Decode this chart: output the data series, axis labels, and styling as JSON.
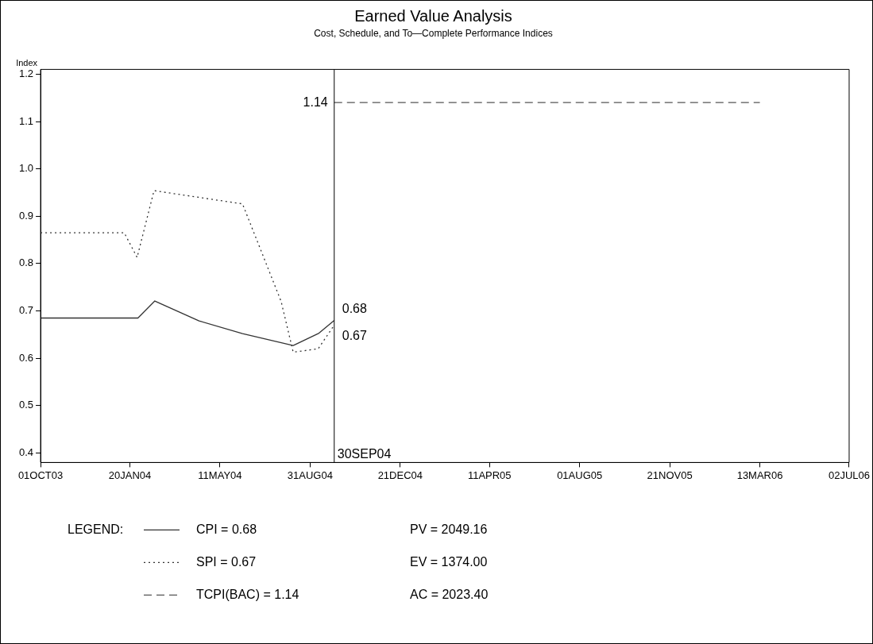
{
  "chart_data": {
    "type": "line",
    "title": "Earned Value Analysis",
    "subtitle": "Cost, Schedule, and To—Complete Performance Indices",
    "ylabel": "Index",
    "legend_title": "LEGEND:",
    "legend": "bottom",
    "grid": false,
    "marker": "none",
    "xlim": [
      "2003-10-01",
      "2006-07-02"
    ],
    "xticks": [
      {
        "value": "2003-10-01",
        "label": "01OCT03"
      },
      {
        "value": "2004-01-20",
        "label": "20JAN04"
      },
      {
        "value": "2004-05-11",
        "label": "11MAY04"
      },
      {
        "value": "2004-08-31",
        "label": "31AUG04"
      },
      {
        "value": "2004-12-21",
        "label": "21DEC04"
      },
      {
        "value": "2005-04-11",
        "label": "11APR05"
      },
      {
        "value": "2005-08-01",
        "label": "01AUG05"
      },
      {
        "value": "2005-11-21",
        "label": "21NOV05"
      },
      {
        "value": "2006-03-13",
        "label": "13MAR06"
      },
      {
        "value": "2006-07-02",
        "label": "02JUL06"
      }
    ],
    "ylim": [
      0.38,
      1.21
    ],
    "yticks": [
      0.4,
      0.5,
      0.6,
      0.7,
      0.8,
      0.9,
      {
        "value": 1,
        "label": "1.0"
      },
      1.1,
      1.2
    ],
    "series": [
      {
        "name": "CPI = 0.68",
        "color": "#333333",
        "line_style": "solid",
        "x": [
          "2003-10-01",
          "2004-01-30",
          "2004-02-20",
          "2004-04-15",
          "2004-06-08",
          "2004-08-10",
          "2004-09-11",
          "2004-09-30"
        ],
        "values": [
          0.685,
          0.685,
          0.721,
          0.679,
          0.652,
          0.627,
          0.653,
          0.68
        ]
      },
      {
        "name": "SPI = 0.67",
        "color": "#333333",
        "line_style": "dotted",
        "x": [
          "2003-10-01",
          "2004-01-13",
          "2004-01-29",
          "2004-02-19",
          "2004-06-08",
          "2004-07-26",
          "2004-08-10",
          "2004-09-10",
          "2004-09-30"
        ],
        "values": [
          0.865,
          0.865,
          0.813,
          0.954,
          0.926,
          0.72,
          0.613,
          0.62,
          0.67
        ]
      },
      {
        "name": "TCPI(BAC) = 1.14",
        "color": "#555555",
        "line_style": "dashed",
        "x": [
          "2004-09-30",
          "2006-03-13"
        ],
        "values": [
          1.14,
          1.14
        ]
      }
    ],
    "ref_lines": [
      {
        "axis": "x",
        "value": "2004-09-30",
        "label": "30SEP04",
        "color": "#000000",
        "line_style": "solid"
      }
    ],
    "annotations": [
      {
        "text": "1.14",
        "x": "2004-09-30",
        "y": 1.14
      },
      {
        "text": "0.68",
        "x": "2004-09-30",
        "y": 0.68
      },
      {
        "text": "0.67",
        "x": "2004-09-30",
        "y": 0.67
      },
      "PV = 2049.16",
      "EV = 1374.00",
      "AC = 2023.40"
    ]
  }
}
